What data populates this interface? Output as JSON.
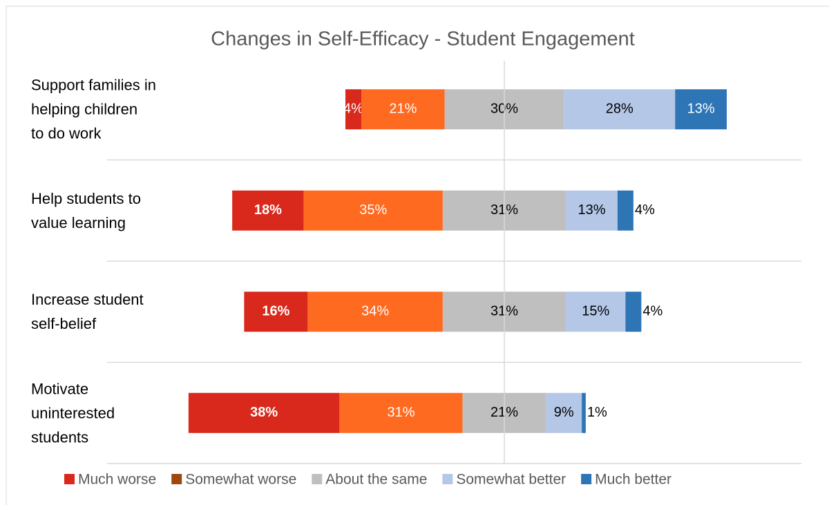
{
  "chart_data": {
    "type": "diverging_bar",
    "title": "Changes in Self-Efficacy - Student Engagement",
    "categories": [
      "Support families in\nhelping children\nto do work",
      "Help students to\nvalue learning",
      "Increase student\nself-belief",
      "Motivate\nuninterested\nstudents"
    ],
    "neutral_series": 2,
    "series": [
      {
        "name": "Much worse",
        "color": "#d9291c",
        "legend_color": "#d9291c",
        "values": [
          4,
          18,
          16,
          38
        ],
        "value_labels": [
          "4%",
          "18%",
          "16%",
          "38%"
        ]
      },
      {
        "name": "Somewhat worse",
        "color": "#ff6a21",
        "legend_color": "#9e480e",
        "values": [
          21,
          35,
          34,
          31
        ],
        "value_labels": [
          "21%",
          "35%",
          "34%",
          "31%"
        ]
      },
      {
        "name": "About the same",
        "color": "#bfbfbf",
        "legend_color": "#bfbfbf",
        "values": [
          30,
          31,
          31,
          21
        ],
        "value_labels": [
          "30%",
          "31%",
          "31%",
          "21%"
        ]
      },
      {
        "name": "Somewhat better",
        "color": "#b4c7e7",
        "legend_color": "#b4c7e7",
        "values": [
          28,
          13,
          15,
          9
        ],
        "value_labels": [
          "28%",
          "13%",
          "15%",
          "9%"
        ]
      },
      {
        "name": "Much better",
        "color": "#2e75b6",
        "legend_color": "#2e75b6",
        "values": [
          13,
          4,
          4,
          1
        ],
        "value_labels": [
          "13%",
          "4%",
          "4%",
          "1%"
        ]
      }
    ]
  }
}
